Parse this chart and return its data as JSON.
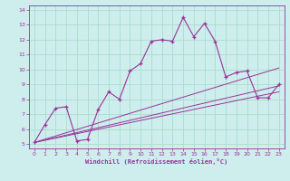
{
  "xlabel": "Windchill (Refroidissement éolien,°C)",
  "bg_color": "#cdeeed",
  "line_color": "#993399",
  "grid_color": "#aaddcc",
  "x_data": [
    0,
    1,
    2,
    3,
    4,
    5,
    6,
    7,
    8,
    9,
    10,
    11,
    12,
    13,
    14,
    15,
    16,
    17,
    18,
    19,
    20,
    21,
    22,
    23
  ],
  "y_data": [
    5.1,
    6.3,
    7.4,
    7.5,
    5.2,
    5.3,
    7.3,
    8.5,
    8.0,
    9.9,
    10.4,
    11.9,
    12.0,
    11.9,
    13.5,
    12.2,
    13.1,
    11.9,
    9.5,
    9.8,
    9.9,
    8.1,
    8.1,
    9.0
  ],
  "reg_line1_pts": [
    [
      0,
      5.1
    ],
    [
      23,
      8.5
    ]
  ],
  "reg_line2_pts": [
    [
      0,
      5.1
    ],
    [
      23,
      8.9
    ]
  ],
  "reg_line3_pts": [
    [
      0,
      5.1
    ],
    [
      23,
      10.1
    ]
  ],
  "ylim": [
    5,
    14
  ],
  "xlim": [
    0,
    23
  ],
  "yticks": [
    5,
    6,
    7,
    8,
    9,
    10,
    11,
    12,
    13,
    14
  ]
}
